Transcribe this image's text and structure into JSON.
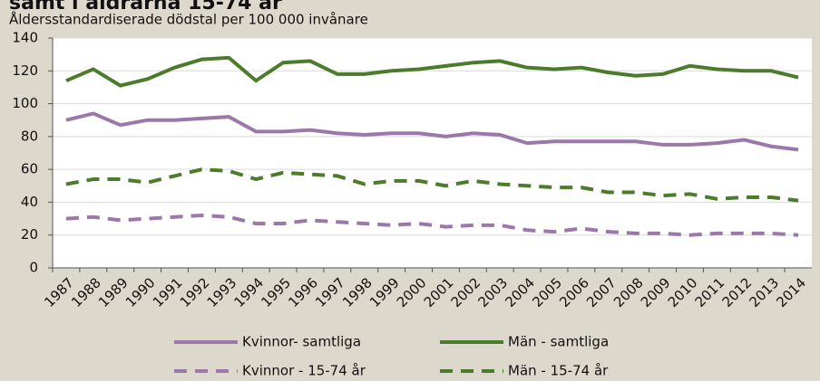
{
  "chart_data": {
    "type": "line",
    "title": "samt i åldrarna 15-74 år",
    "subtitle": "Åldersstandardiserade dödstal per 100 000 invånare",
    "categories": [
      "1987",
      "1988",
      "1989",
      "1990",
      "1991",
      "1992",
      "1993",
      "1994",
      "1995",
      "1996",
      "1997",
      "1998",
      "1999",
      "2000",
      "2001",
      "2002",
      "2003",
      "2004",
      "2005",
      "2006",
      "2007",
      "2008",
      "2009",
      "2010",
      "2011",
      "2012",
      "2013",
      "2014"
    ],
    "series": [
      {
        "name": "Kvinnor- samtliga",
        "color": "#9b78a9",
        "dashed": false,
        "values": [
          90,
          94,
          87,
          90,
          90,
          91,
          92,
          83,
          83,
          84,
          82,
          81,
          82,
          82,
          80,
          82,
          81,
          76,
          77,
          77,
          77,
          77,
          75,
          75,
          76,
          78,
          74,
          72
        ]
      },
      {
        "name": "Män - samtliga",
        "color": "#4b7b2b",
        "dashed": false,
        "values": [
          114,
          121,
          111,
          115,
          122,
          127,
          128,
          114,
          125,
          126,
          118,
          118,
          120,
          121,
          123,
          125,
          126,
          122,
          121,
          122,
          119,
          117,
          118,
          123,
          121,
          120,
          120,
          116
        ]
      },
      {
        "name": "Kvinnor - 15-74 år",
        "color": "#9b78a9",
        "dashed": true,
        "values": [
          30,
          31,
          29,
          30,
          31,
          32,
          31,
          27,
          27,
          29,
          28,
          27,
          26,
          27,
          25,
          26,
          26,
          23,
          22,
          24,
          22,
          21,
          21,
          20,
          21,
          21,
          21,
          20
        ]
      },
      {
        "name": "Män - 15-74 år",
        "color": "#4b7b2b",
        "dashed": true,
        "values": [
          51,
          54,
          54,
          52,
          56,
          60,
          59,
          54,
          58,
          57,
          56,
          51,
          53,
          53,
          50,
          53,
          51,
          50,
          49,
          49,
          46,
          46,
          44,
          45,
          42,
          43,
          43,
          41
        ]
      }
    ],
    "ylim": [
      0,
      140
    ],
    "yticks": [
      0,
      20,
      40,
      60,
      80,
      100,
      120,
      140
    ],
    "grid": true
  }
}
